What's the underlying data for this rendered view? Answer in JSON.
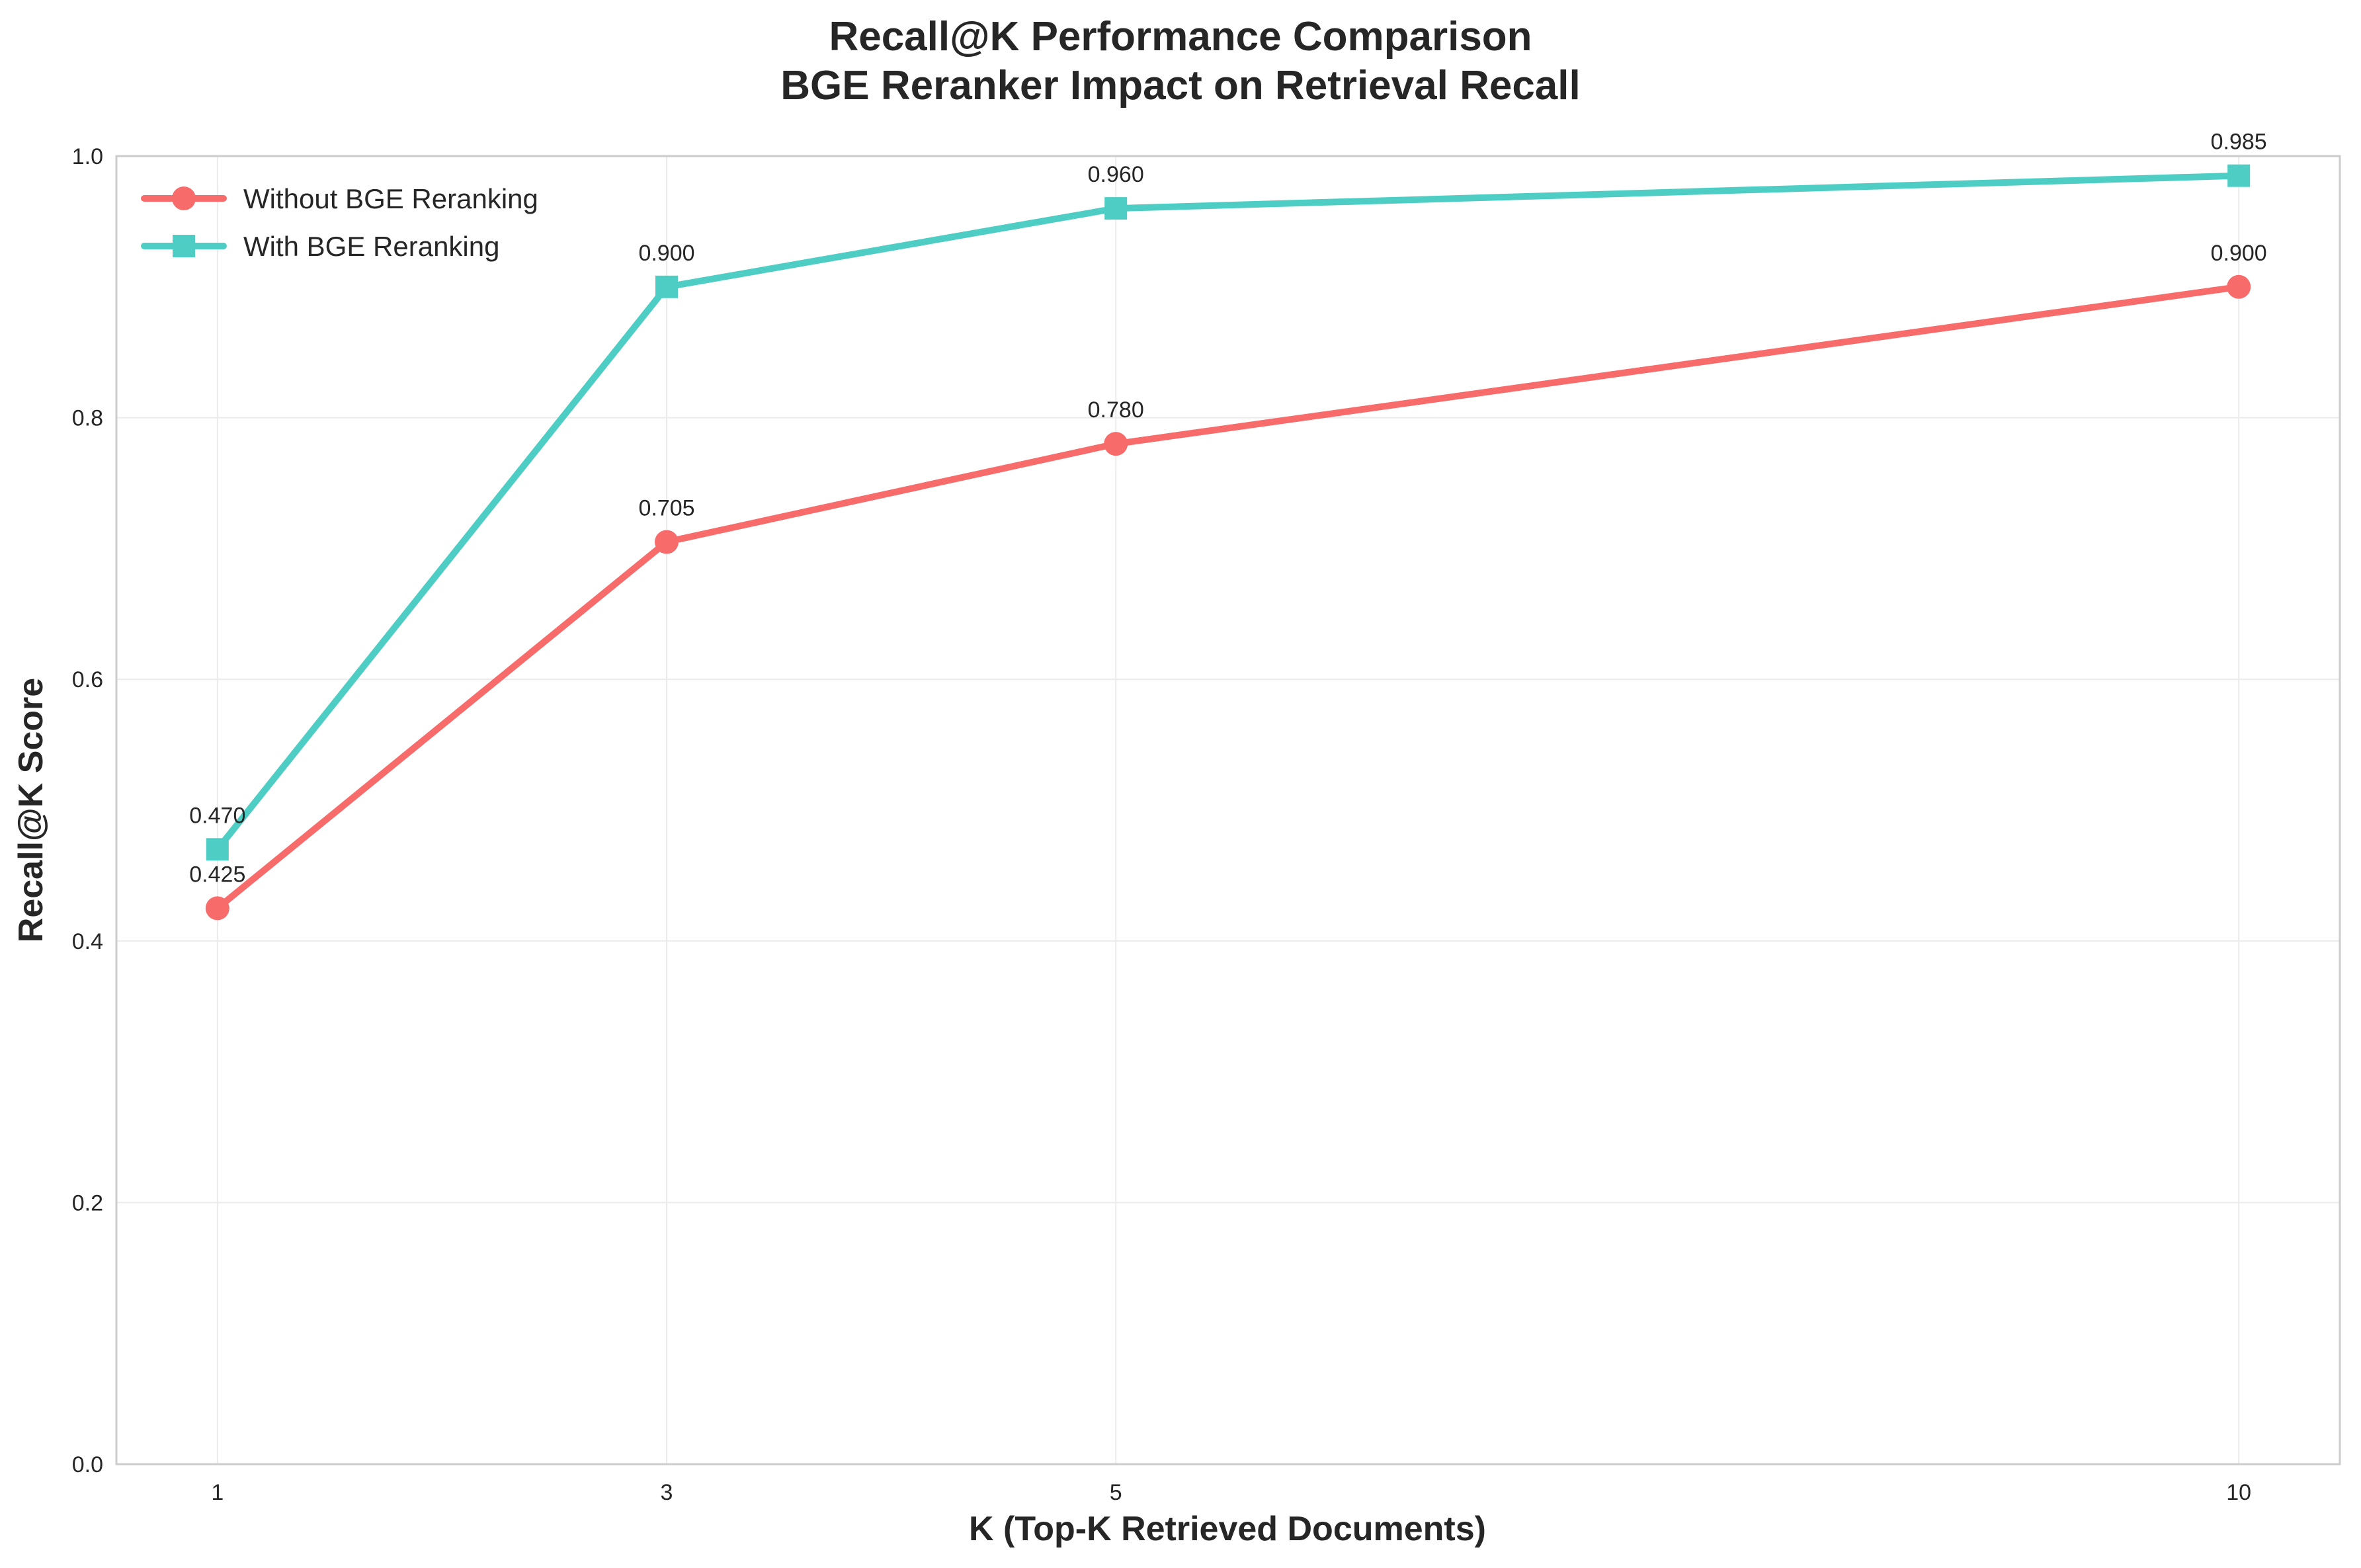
{
  "chart_data": {
    "type": "line",
    "title": "Recall@K Performance Comparison",
    "subtitle": "BGE Reranker Impact on Retrieval Recall",
    "xlabel": "K (Top-K Retrieved Documents)",
    "ylabel": "Recall@K Score",
    "x": [
      1,
      3,
      5,
      10
    ],
    "x_tick_labels": [
      "1",
      "3",
      "5",
      "10"
    ],
    "xlim": [
      0.55,
      10.45
    ],
    "ylim": [
      0.0,
      1.0
    ],
    "y_ticks": [
      0.0,
      0.2,
      0.4,
      0.6,
      0.8,
      1.0
    ],
    "y_tick_labels": [
      "0.0",
      "0.2",
      "0.4",
      "0.6",
      "0.8",
      "1.0"
    ],
    "grid": true,
    "legend_position": "upper-left",
    "series": [
      {
        "name": "Without BGE Reranking",
        "values": [
          0.425,
          0.705,
          0.78,
          0.9
        ],
        "labels": [
          "0.425",
          "0.705",
          "0.780",
          "0.900"
        ],
        "color": "#f76b6b",
        "marker": "circle"
      },
      {
        "name": "With BGE Reranking",
        "values": [
          0.47,
          0.9,
          0.96,
          0.985
        ],
        "labels": [
          "0.470",
          "0.900",
          "0.960",
          "0.985"
        ],
        "color": "#4ecdc4",
        "marker": "square"
      }
    ]
  }
}
